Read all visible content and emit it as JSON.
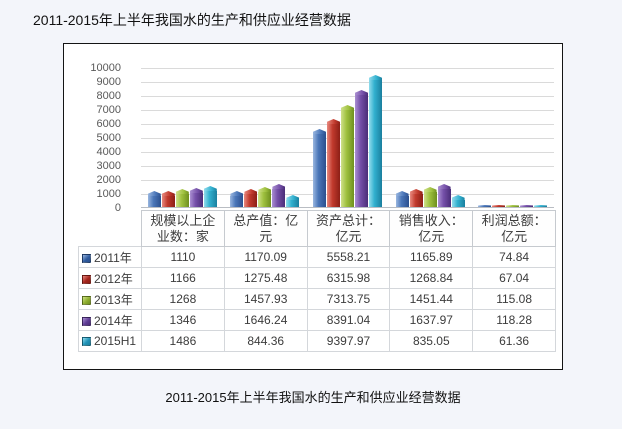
{
  "page": {
    "title": "2011-2015年上半年我国水的生产和供应业经营数据",
    "caption": "2011-2015年上半年我国水的生产和供应业经营数据",
    "background_color": "#f3f5fa",
    "panel_border_color": "#141414"
  },
  "chart_data": {
    "type": "bar",
    "title": "2011-2015年上半年我国水的生产和供应业经营数据",
    "categories": [
      "规模以上企业数：家",
      "总产值：亿元",
      "资产总计：亿元",
      "销售收入：亿元",
      "利润总额：亿元"
    ],
    "series": [
      {
        "name": "2011年",
        "color": "#4a76b8",
        "color_light": "#9ab7e0",
        "color_dark": "#2b4f8e",
        "legend_color": "#2e5b9e",
        "values": [
          1110,
          1170.09,
          5558.21,
          1165.89,
          74.84
        ]
      },
      {
        "name": "2012年",
        "color": "#c13a2d",
        "color_light": "#e8897f",
        "color_dark": "#8c1f16",
        "legend_color": "#a6251d",
        "values": [
          1166,
          1275.48,
          6315.98,
          1268.84,
          67.04
        ]
      },
      {
        "name": "2013年",
        "color": "#9fc13f",
        "color_light": "#cfe18a",
        "color_dark": "#6e8f1e",
        "legend_color": "#8fae2f",
        "values": [
          1268,
          1457.93,
          7313.75,
          1451.44,
          115.08
        ]
      },
      {
        "name": "2014年",
        "color": "#7550a8",
        "color_light": "#ab90d2",
        "color_dark": "#4a2d78",
        "legend_color": "#5f3d96",
        "values": [
          1346,
          1646.24,
          8391.04,
          1637.97,
          118.28
        ]
      },
      {
        "name": "2015H1",
        "color": "#31b0cf",
        "color_light": "#92dcec",
        "color_dark": "#1a7f9e",
        "legend_color": "#2193b8",
        "values": [
          1486,
          844.36,
          9397.97,
          835.05,
          61.36
        ]
      }
    ],
    "ylim": [
      0,
      10000
    ],
    "yticks": [
      0,
      1000,
      2000,
      3000,
      4000,
      5000,
      6000,
      7000,
      8000,
      9000,
      10000
    ],
    "grid": true,
    "gridline_color": "#dadada",
    "legend_position": "table-rows"
  },
  "table": {
    "header": [
      "",
      "规模以上企业数：家",
      "总产值：亿元",
      "资产总计：亿元",
      "销售收入：亿元",
      "利润总额：亿元"
    ],
    "rows": [
      {
        "label": "2011年",
        "cells": [
          "1110",
          "1170.09",
          "5558.21",
          "1165.89",
          "74.84"
        ]
      },
      {
        "label": "2012年",
        "cells": [
          "1166",
          "1275.48",
          "6315.98",
          "1268.84",
          "67.04"
        ]
      },
      {
        "label": "2013年",
        "cells": [
          "1268",
          "1457.93",
          "7313.75",
          "1451.44",
          "115.08"
        ]
      },
      {
        "label": "2014年",
        "cells": [
          "1346",
          "1646.24",
          "8391.04",
          "1637.97",
          "118.28"
        ]
      },
      {
        "label": "2015H1",
        "cells": [
          "1486",
          "844.36",
          "9397.97",
          "835.05",
          "61.36"
        ]
      }
    ]
  }
}
